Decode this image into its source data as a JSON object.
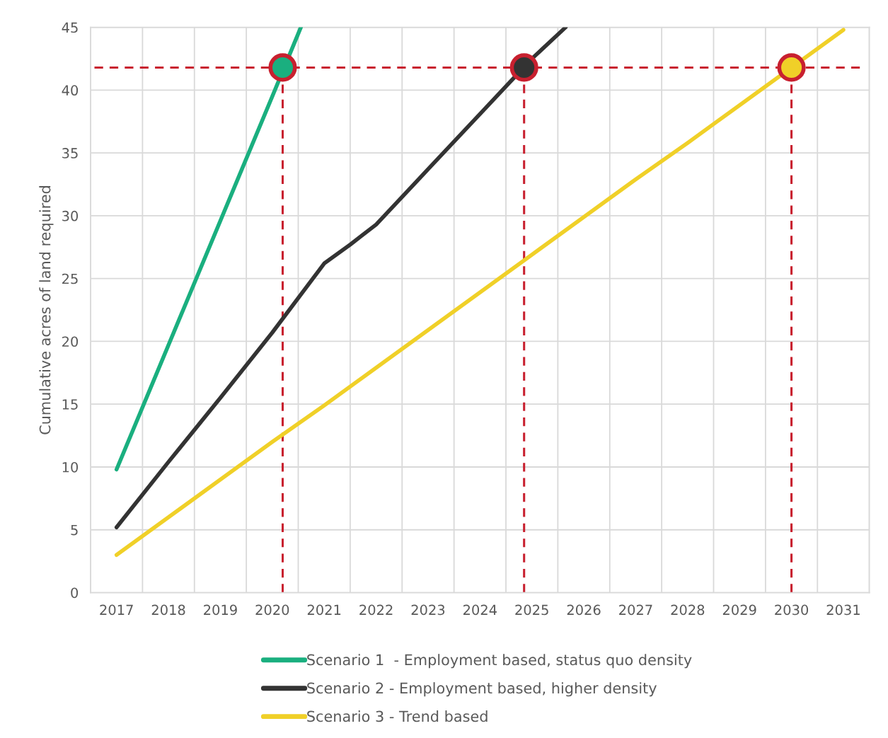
{
  "chart_data": {
    "type": "line",
    "ylabel": "Cumulative acres of land required",
    "xlim": [
      2016.5,
      2031.5
    ],
    "xticks": [
      {
        "value": 2016.5,
        "label": null
      },
      {
        "value": 2017,
        "label": "2017"
      },
      {
        "value": 2017.5,
        "label": null
      },
      {
        "value": 2018,
        "label": "2018"
      },
      {
        "value": 2018.5,
        "label": null
      },
      {
        "value": 2019,
        "label": "2019"
      },
      {
        "value": 2019.5,
        "label": null
      },
      {
        "value": 2020,
        "label": "2020"
      },
      {
        "value": 2020.5,
        "label": null
      },
      {
        "value": 2021,
        "label": "2021"
      },
      {
        "value": 2021.5,
        "label": null
      },
      {
        "value": 2022,
        "label": "2022"
      },
      {
        "value": 2022.5,
        "label": null
      },
      {
        "value": 2023,
        "label": "2023"
      },
      {
        "value": 2023.5,
        "label": null
      },
      {
        "value": 2024,
        "label": "2024"
      },
      {
        "value": 2024.5,
        "label": null
      },
      {
        "value": 2025,
        "label": "2025"
      },
      {
        "value": 2025.5,
        "label": null
      },
      {
        "value": 2026,
        "label": "2026"
      },
      {
        "value": 2026.5,
        "label": null
      },
      {
        "value": 2027,
        "label": "2027"
      },
      {
        "value": 2027.5,
        "label": null
      },
      {
        "value": 2028,
        "label": "2028"
      },
      {
        "value": 2028.5,
        "label": null
      },
      {
        "value": 2029,
        "label": "2029"
      },
      {
        "value": 2029.5,
        "label": null
      },
      {
        "value": 2030,
        "label": "2030"
      },
      {
        "value": 2030.5,
        "label": null
      },
      {
        "value": 2031,
        "label": "2031"
      },
      {
        "value": 2031.5,
        "label": null
      }
    ],
    "ylim": [
      0,
      45
    ],
    "yticks": [
      0,
      5,
      10,
      15,
      20,
      25,
      30,
      35,
      40,
      45
    ],
    "grid": true,
    "legend": "bottom",
    "line_style": "solid",
    "series": [
      {
        "name": "Scenario 1  - Employment based, status quo density",
        "color": "#1aaf7f",
        "x": [
          2017,
          2018,
          2019,
          2020,
          2020.55
        ],
        "values": [
          9.8,
          19.7,
          29.6,
          39.5,
          45
        ]
      },
      {
        "name": "Scenario 2 - Employment based, higher density",
        "color": "#333333",
        "x": [
          2017,
          2018,
          2019,
          2020,
          2021,
          2021.5,
          2022,
          2023,
          2024,
          2025,
          2025.65
        ],
        "values": [
          5.2,
          10.4,
          15.5,
          20.7,
          26.2,
          27.7,
          29.3,
          33.7,
          38.1,
          42.5,
          45
        ]
      },
      {
        "name": "Scenario 3 - Trend based",
        "color": "#f0d028",
        "x": [
          2017,
          2018,
          2019,
          2020,
          2021,
          2022,
          2023,
          2024,
          2025,
          2026,
          2027,
          2028,
          2029,
          2030,
          2031
        ],
        "values": [
          3.0,
          6.0,
          9.0,
          12.0,
          14.9,
          17.9,
          20.9,
          23.9,
          26.9,
          29.9,
          32.9,
          35.8,
          38.8,
          41.8,
          44.8
        ]
      },
      {
        "type": "scatter",
        "marker": "circle",
        "x": [
          2020.2,
          2024.85,
          2030
        ],
        "values": [
          41.8,
          41.8,
          41.8
        ],
        "colors": [
          "#1aaf7f",
          "#333333",
          "#f0d028"
        ]
      }
    ],
    "ref_lines": [
      {
        "axis": "y",
        "value": 41.8,
        "color": "#c8202f",
        "line_style": "dashed"
      },
      {
        "axis": "x",
        "value": 2020.2,
        "color": "#c8202f",
        "line_style": "dashed"
      },
      {
        "axis": "x",
        "value": 2024.85,
        "color": "#c8202f",
        "line_style": "dashed"
      },
      {
        "axis": "x",
        "value": 2030,
        "color": "#c8202f",
        "line_style": "dashed"
      }
    ]
  }
}
